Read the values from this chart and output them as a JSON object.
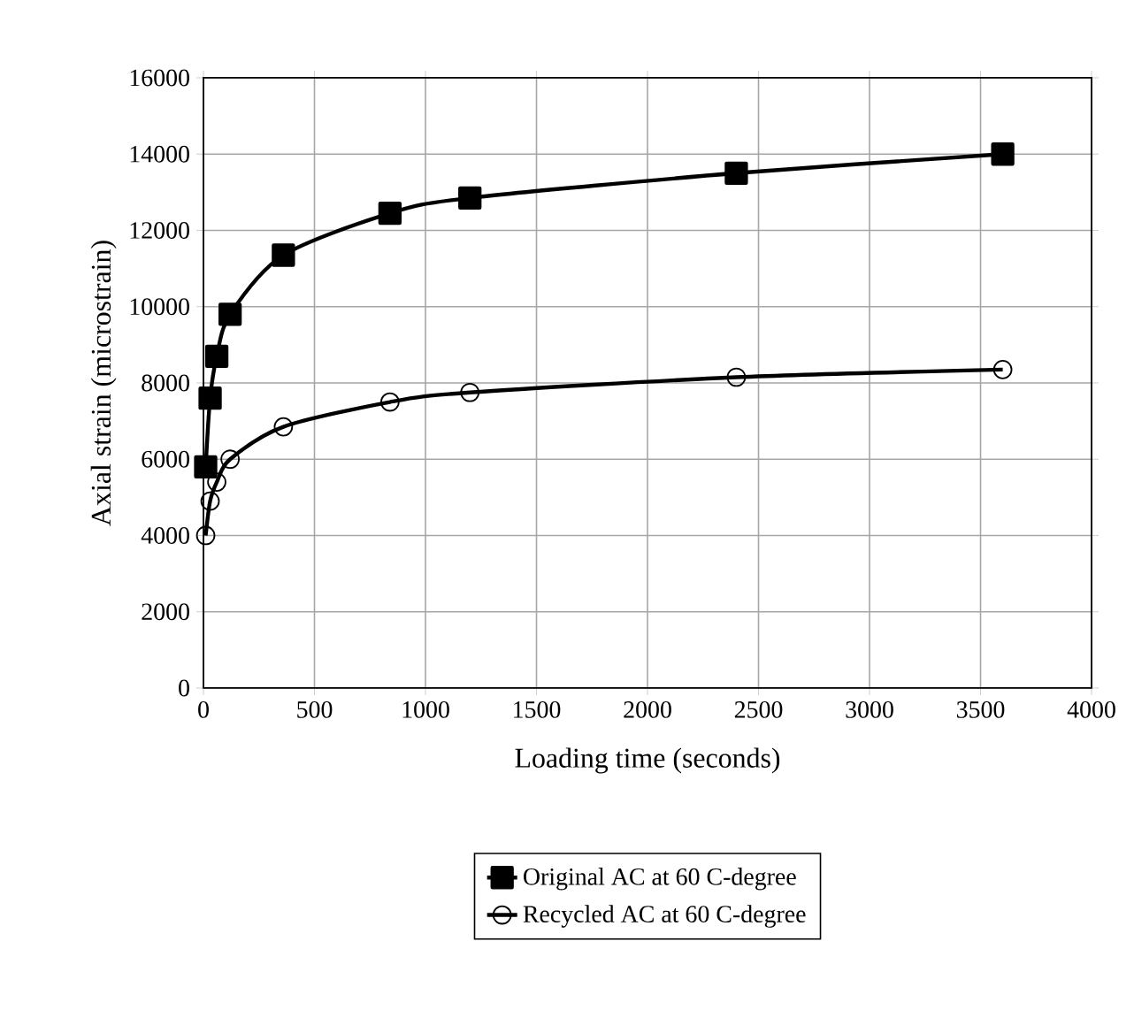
{
  "chart_data": {
    "type": "line",
    "xlabel": "Loading time (seconds)",
    "ylabel": "Axial strain (microstrain)",
    "x": [
      10,
      30,
      60,
      120,
      360,
      840,
      1200,
      2400,
      3600
    ],
    "series": [
      {
        "name": "Original AC at 60 C-degree",
        "color": "#000000",
        "marker": "square",
        "values": [
          5800,
          7600,
          8700,
          9800,
          11350,
          12450,
          12850,
          13500,
          14000
        ]
      },
      {
        "name": "Recycled AC at 60 C-degree",
        "color": "#000000",
        "marker": "circle",
        "values": [
          4000,
          4900,
          5400,
          6000,
          6850,
          7500,
          7750,
          8150,
          8350
        ]
      }
    ],
    "xlim": [
      0,
      4000
    ],
    "xticks": [
      0,
      500,
      1000,
      1500,
      2000,
      2500,
      3000,
      3500,
      4000
    ],
    "ylim": [
      0,
      16000
    ],
    "yticks": [
      0,
      2000,
      4000,
      6000,
      8000,
      10000,
      12000,
      14000,
      16000
    ],
    "grid": true,
    "legend": "bottom",
    "line_style": "solid"
  }
}
